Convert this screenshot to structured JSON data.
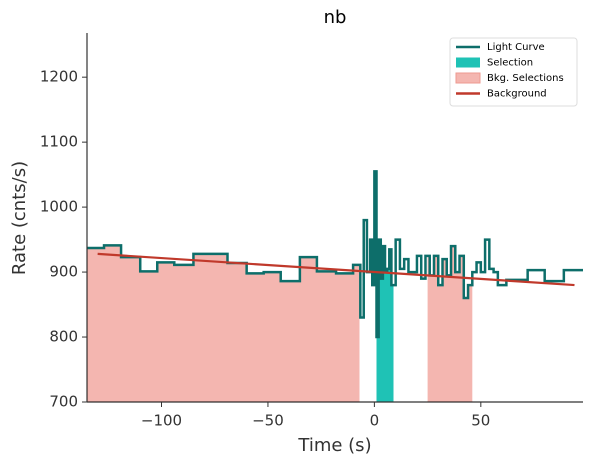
{
  "chart_data": {
    "type": "line",
    "title": "nb",
    "x_label": "Time (s)",
    "y_label": "Rate (cnts/s)",
    "xlim": [
      -135,
      98
    ],
    "ylim": [
      700,
      1268
    ],
    "xticks": [
      {
        "value": -100,
        "label": "−100"
      },
      {
        "value": -50,
        "label": "−50"
      },
      0,
      50
    ],
    "yticks": [
      700,
      800,
      900,
      1000,
      1100,
      1200
    ],
    "legend": "upper right",
    "series": [
      {
        "name": "Light Curve",
        "color": "#0d6e6a",
        "x": [
          -135,
          -127,
          -119,
          -110,
          -102,
          -94,
          -85,
          -69,
          -60,
          -52,
          -44,
          -35,
          -27,
          -18,
          -10,
          -6.6,
          -5,
          -3.5,
          -2,
          -1,
          0,
          1,
          2,
          3,
          4,
          5,
          6,
          7,
          8,
          10,
          12,
          14,
          16,
          20,
          22,
          24,
          26,
          28,
          30,
          32,
          34,
          36,
          38,
          40,
          42,
          44,
          46,
          48,
          50,
          52,
          54,
          56,
          58,
          60,
          62,
          72,
          80,
          89,
          98
        ],
        "values": [
          937,
          941,
          923,
          901,
          915,
          911,
          928,
          914,
          898,
          900,
          886,
          923,
          901,
          898,
          911,
          830,
          980,
          900,
          950,
          880,
          1055,
          800,
          950,
          890,
          940,
          900,
          905,
          935,
          880,
          950,
          905,
          920,
          900,
          925,
          890,
          925,
          895,
          925,
          880,
          920,
          895,
          940,
          900,
          925,
          860,
          880,
          900,
          915,
          900,
          950,
          905,
          900,
          880,
          880,
          888,
          903,
          886,
          903,
          903
        ]
      }
    ],
    "selection": {
      "name": "Selection",
      "color": "#1fc2b5",
      "range": [
        1,
        9
      ]
    },
    "bkg_selections": {
      "name": "Bkg. Selections",
      "color": "#f4b6b0",
      "edge": "#ee9a90",
      "ranges": [
        [
          -135,
          -7
        ],
        [
          25,
          46
        ]
      ]
    },
    "background": {
      "name": "Background",
      "color": "#c0392b",
      "x": [
        -130,
        94
      ],
      "values": [
        928,
        880
      ]
    }
  }
}
